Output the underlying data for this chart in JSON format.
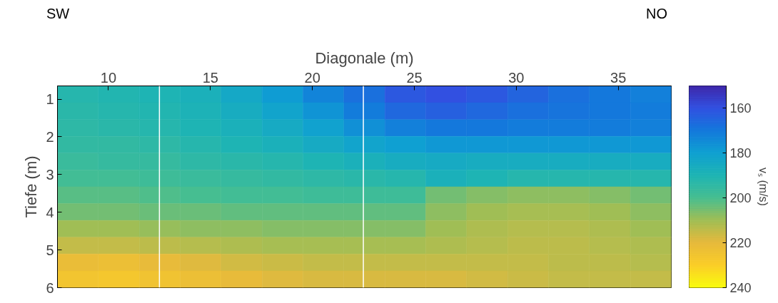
{
  "chart_data": {
    "type": "heatmap",
    "xlabel": "Diagonale (m)",
    "ylabel": "Tiefe (m)",
    "clabel": "vₛ (m/s)",
    "annotations": [
      "SW",
      "NO"
    ],
    "xlim": [
      7.5,
      37.6
    ],
    "xticks": [
      10,
      15,
      20,
      25,
      30,
      35
    ],
    "ylim": [
      6,
      0.65
    ],
    "yticks": [
      1,
      2,
      3,
      4,
      5,
      6
    ],
    "clim": [
      150,
      240
    ],
    "cticks": [
      160,
      180,
      200,
      220,
      240
    ],
    "ref_lines": [
      {
        "axis": "x",
        "value": 12.5,
        "color": "#ffffff"
      },
      {
        "axis": "x",
        "value": 22.5,
        "color": "#ffffff"
      }
    ],
    "cells": [
      [
        192,
        191,
        190,
        188,
        184,
        179,
        173,
        168,
        162,
        160,
        162,
        165,
        168,
        170,
        172
      ],
      [
        193,
        192,
        191,
        189,
        186,
        182,
        177,
        171,
        166,
        164,
        166,
        168,
        169,
        170,
        171
      ],
      [
        194,
        193,
        192,
        190,
        188,
        185,
        181,
        176,
        172,
        170,
        170,
        171,
        171,
        171,
        172
      ],
      [
        195,
        195,
        194,
        192,
        190,
        188,
        185,
        182,
        180,
        178,
        178,
        178,
        178,
        178,
        178
      ],
      [
        197,
        196,
        196,
        194,
        193,
        192,
        190,
        188,
        186,
        185,
        186,
        186,
        186,
        186,
        186
      ],
      [
        199,
        199,
        198,
        197,
        196,
        195,
        194,
        193,
        192,
        188,
        190,
        192,
        192,
        192,
        192
      ],
      [
        202,
        202,
        201,
        200,
        199,
        199,
        198,
        198,
        198,
        205,
        207,
        208,
        208,
        207,
        205
      ],
      [
        205,
        205,
        204,
        204,
        203,
        203,
        203,
        203,
        203,
        208,
        210,
        211,
        211,
        210,
        208
      ],
      [
        210,
        210,
        209,
        208,
        208,
        207,
        207,
        207,
        207,
        210,
        212,
        213,
        213,
        212,
        210
      ],
      [
        215,
        215,
        214,
        213,
        212,
        211,
        211,
        211,
        211,
        212,
        213,
        214,
        214,
        213,
        212
      ],
      [
        222,
        223,
        221,
        219,
        217,
        216,
        215,
        215,
        215,
        215,
        215,
        215,
        214,
        214,
        213
      ],
      [
        226,
        227,
        225,
        223,
        221,
        219,
        218,
        218,
        218,
        218,
        217,
        216,
        215,
        215,
        215
      ]
    ]
  }
}
